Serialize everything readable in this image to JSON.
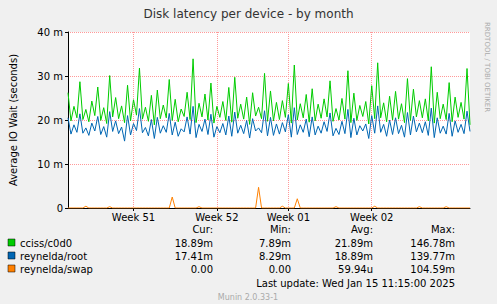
{
  "chart_data": {
    "type": "line",
    "title": "Disk latency per device - by month",
    "y_label": "Average IO Wait (seconds)",
    "categories": [
      null,
      null,
      null,
      null,
      null,
      null,
      null,
      null,
      null,
      null,
      null,
      null,
      null,
      null,
      null,
      null,
      null,
      null,
      null,
      null,
      null,
      null,
      "Week 51",
      null,
      null,
      null,
      null,
      null,
      null,
      null,
      null,
      null,
      null,
      null,
      null,
      null,
      null,
      null,
      null,
      null,
      null,
      null,
      null,
      null,
      null,
      null,
      null,
      null,
      null,
      null,
      "Week 52",
      null,
      null,
      null,
      null,
      null,
      null,
      null,
      null,
      null,
      null,
      null,
      null,
      null,
      null,
      null,
      null,
      null,
      null,
      null,
      null,
      null,
      null,
      null,
      "Week 01",
      null,
      null,
      null,
      null,
      null,
      null,
      null,
      null,
      null,
      null,
      null,
      null,
      null,
      null,
      null,
      null,
      null,
      null,
      null,
      null,
      null,
      null,
      null,
      null,
      null,
      null,
      null,
      "Week 02",
      null,
      null,
      null,
      null,
      null,
      null,
      null,
      null,
      null,
      null,
      null,
      null,
      null,
      null,
      null,
      null,
      null,
      null,
      null,
      null,
      null,
      null,
      null,
      null,
      null,
      null,
      null,
      null,
      null,
      null,
      null,
      null,
      null
    ],
    "series": [
      {
        "name": "cciss/c0d0",
        "color": "#00cc00",
        "stats": [
          {
            "value": 0.01889,
            "label": "18.89m"
          },
          {
            "value": 0.00789,
            "label": "7.89m"
          },
          {
            "value": 0.02189,
            "label": "21.89m"
          },
          {
            "value": 0.14678,
            "label": "146.78m"
          }
        ],
        "values": [
          0.0262,
          0.0198,
          0.0231,
          0.0205,
          0.0287,
          0.0201,
          0.0224,
          0.0196,
          0.0243,
          0.021,
          0.0275,
          0.0199,
          0.0228,
          0.0192,
          0.0301,
          0.0207,
          0.0251,
          0.0203,
          0.0232,
          0.0194,
          0.0279,
          0.0198,
          0.0246,
          0.0211,
          0.0318,
          0.0202,
          0.0229,
          0.0197,
          0.0256,
          0.0189,
          0.0268,
          0.0203,
          0.0234,
          0.0205,
          0.0292,
          0.0199,
          0.0247,
          0.0196,
          0.0225,
          0.0208,
          0.0263,
          0.0201,
          0.0339,
          0.0194,
          0.0238,
          0.0207,
          0.0259,
          0.02,
          0.0284,
          0.0193,
          0.0231,
          0.0206,
          0.0242,
          0.0199,
          0.0274,
          0.0195,
          0.0297,
          0.0204,
          0.0236,
          0.0202,
          0.0252,
          0.019,
          0.0262,
          0.0209,
          0.0229,
          0.0203,
          0.0306,
          0.0197,
          0.0266,
          0.0198,
          0.024,
          0.0201,
          0.0244,
          0.0206,
          0.0283,
          0.0193,
          0.0325,
          0.02,
          0.0237,
          0.0205,
          0.0258,
          0.0195,
          0.0271,
          0.0198,
          0.0236,
          0.0204,
          0.0248,
          0.0207,
          0.0289,
          0.0197,
          0.0226,
          0.02,
          0.0249,
          0.0202,
          0.0312,
          0.0194,
          0.0261,
          0.0199,
          0.0233,
          0.0208,
          0.0242,
          0.0191,
          0.0278,
          0.0203,
          0.033,
          0.0205,
          0.0239,
          0.0196,
          0.0254,
          0.02,
          0.0265,
          0.0202,
          0.0237,
          0.0194,
          0.0294,
          0.0199,
          0.027,
          0.0207,
          0.0244,
          0.0205,
          0.0248,
          0.0198,
          0.0321,
          0.0193,
          0.0263,
          0.0203,
          0.0236,
          0.0201,
          0.0285,
          0.0196,
          0.0252,
          0.0206,
          0.024,
          0.0202,
          0.0317,
          0.0189
        ]
      },
      {
        "name": "reynelda/root",
        "color": "#0066b3",
        "stats": [
          {
            "value": 0.01741,
            "label": "17.41m"
          },
          {
            "value": 0.00829,
            "label": "8.29m"
          },
          {
            "value": 0.01889,
            "label": "18.89m"
          },
          {
            "value": 0.13977,
            "label": "139.77m"
          }
        ],
        "values": [
          0.0205,
          0.0168,
          0.0189,
          0.0172,
          0.0214,
          0.017,
          0.0182,
          0.0165,
          0.0193,
          0.0175,
          0.0208,
          0.0167,
          0.0185,
          0.0161,
          0.0219,
          0.0174,
          0.0198,
          0.0169,
          0.0184,
          0.0152,
          0.021,
          0.0166,
          0.0192,
          0.0176,
          0.0226,
          0.0171,
          0.0183,
          0.0164,
          0.0201,
          0.0158,
          0.0206,
          0.017,
          0.0187,
          0.0172,
          0.0215,
          0.0166,
          0.0195,
          0.0163,
          0.018,
          0.0173,
          0.0207,
          0.0168,
          0.0231,
          0.016,
          0.019,
          0.0174,
          0.0202,
          0.0167,
          0.0213,
          0.0161,
          0.0185,
          0.0171,
          0.0192,
          0.0166,
          0.0209,
          0.0163,
          0.0218,
          0.017,
          0.0188,
          0.0169,
          0.0199,
          0.0159,
          0.0203,
          0.0175,
          0.0182,
          0.0171,
          0.0221,
          0.0164,
          0.0206,
          0.0165,
          0.0191,
          0.0168,
          0.0194,
          0.0173,
          0.0212,
          0.0161,
          0.0228,
          0.0167,
          0.0189,
          0.0172,
          0.0202,
          0.0162,
          0.0207,
          0.0166,
          0.0186,
          0.017,
          0.0196,
          0.0174,
          0.0216,
          0.0164,
          0.0181,
          0.0167,
          0.0197,
          0.0169,
          0.0224,
          0.016,
          0.0204,
          0.0166,
          0.0187,
          0.0175,
          0.0191,
          0.0158,
          0.021,
          0.017,
          0.0232,
          0.0172,
          0.019,
          0.0163,
          0.02,
          0.0167,
          0.0205,
          0.0169,
          0.0188,
          0.0161,
          0.0217,
          0.0166,
          0.0209,
          0.0173,
          0.0193,
          0.0171,
          0.0196,
          0.0165,
          0.0227,
          0.016,
          0.0205,
          0.017,
          0.0186,
          0.0168,
          0.0215,
          0.0163,
          0.0198,
          0.0172,
          0.019,
          0.0169,
          0.022,
          0.0174
        ]
      },
      {
        "name": "reynelda/swap",
        "color": "#ff8000",
        "stats": [
          {
            "value": 0,
            "label": "0.00"
          },
          {
            "value": 0,
            "label": "0.00"
          },
          {
            "value": 5.994e-05,
            "label": "59.94u"
          },
          {
            "value": 0.10459,
            "label": "104.59m"
          }
        ],
        "values": [
          0,
          0,
          0,
          0,
          0,
          0,
          0.0004,
          0,
          0,
          0,
          0,
          0,
          0,
          0,
          0.0003,
          0,
          0,
          0,
          0,
          0,
          0,
          0,
          0,
          0,
          0,
          0,
          0,
          0,
          0,
          0,
          0,
          0,
          0,
          0,
          0,
          0.0025,
          0,
          0,
          0,
          0,
          0,
          0,
          0,
          0,
          0.0003,
          0,
          0,
          0,
          0,
          0,
          0,
          0,
          0,
          0,
          0,
          0,
          0,
          0,
          0,
          0,
          0,
          0,
          0,
          0,
          0.0047,
          0,
          0,
          0,
          0,
          0,
          0,
          0,
          0.0004,
          0,
          0,
          0,
          0,
          0.0021,
          0,
          0,
          0,
          0,
          0,
          0,
          0,
          0,
          0,
          0,
          0,
          0,
          0.0003,
          0,
          0,
          0,
          0,
          0,
          0,
          0,
          0,
          0,
          0,
          0,
          0,
          0.0004,
          0,
          0,
          0,
          0,
          0,
          0,
          0,
          0,
          0,
          0,
          0,
          0,
          0,
          0,
          0.0003,
          0,
          0,
          0,
          0,
          0,
          0,
          0,
          0,
          0.0003,
          0,
          0,
          0,
          0,
          0,
          0,
          0,
          0
        ]
      }
    ],
    "ylim": [
      0,
      0.04
    ],
    "yticks": [
      0,
      {
        "value": 0.01,
        "label": "10 m"
      },
      {
        "value": 0.02,
        "label": "20 m"
      },
      {
        "value": 0.03,
        "label": "30 m"
      },
      {
        "value": 0.04,
        "label": "40 m"
      }
    ],
    "grid": true,
    "legend": "bottom",
    "stat_headers": [
      "Cur:",
      "Min:",
      "Avg:",
      "Max:"
    ],
    "footer": "Last update: Wed Jan 15 11:15:00 2025",
    "credit": "Munin 2.0.33-1",
    "watermark": "RRDTOOL / TOBI OETIKER"
  }
}
